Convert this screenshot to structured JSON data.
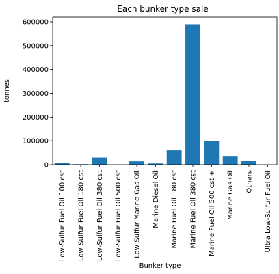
{
  "chart_data": {
    "type": "bar",
    "title": "Each bunker type sale",
    "xlabel": "Bunker type",
    "ylabel": "tonnes",
    "categories": [
      "Low-Sulfur Fuel Oil 100 cst",
      "Low-Sulfur Fuel Oil 180 cst",
      "Low-Sulfur Fuel Oil 380 cst",
      "Low-Sulfur Fuel Oil 500 cst",
      "Low-Sulfur Marine Gas Oil",
      "Marine Diesel Oil",
      "Marine Fuel Oil 180 cst",
      "Marine Fuel Oil 380 cst",
      "Marine Fuel Oil 500 cst +",
      "Marine Gas Oil",
      "Others",
      "Ultra Low-Sulfur Fuel Oil"
    ],
    "values": [
      8000,
      2000,
      30000,
      300,
      14000,
      5000,
      60000,
      590000,
      100000,
      34000,
      17000,
      300
    ],
    "ylim": [
      0,
      620000
    ],
    "yticks": [
      0,
      100000,
      200000,
      300000,
      400000,
      500000,
      600000
    ],
    "ytick_labels": [
      "0",
      "100000",
      "200000",
      "300000",
      "400000",
      "500000",
      "600000"
    ],
    "bar_color": "#1f77b4",
    "grid": false
  }
}
